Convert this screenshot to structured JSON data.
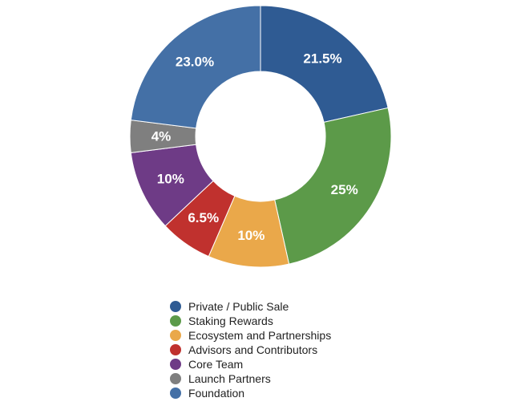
{
  "chart_data": {
    "type": "pie",
    "variant": "donut",
    "categories": [
      "Private / Public Sale",
      "Staking Rewards",
      "Ecosystem and Partnerships",
      "Advisors and Contributors",
      "Core Team",
      "Launch Partners",
      "Foundation"
    ],
    "values": [
      21.5,
      25,
      10,
      6.5,
      10,
      4,
      23.0
    ],
    "labels": [
      "21.5%",
      "25%",
      "10%",
      "6.5%",
      "10%",
      "4%",
      "23.0%"
    ],
    "colors": [
      "#2f5b93",
      "#5c9a49",
      "#eaa84a",
      "#c0312e",
      "#6e3b86",
      "#7f7f7f",
      "#4470a6"
    ],
    "start": "12 o'clock",
    "direction": "clockwise",
    "legend_position": "bottom"
  }
}
